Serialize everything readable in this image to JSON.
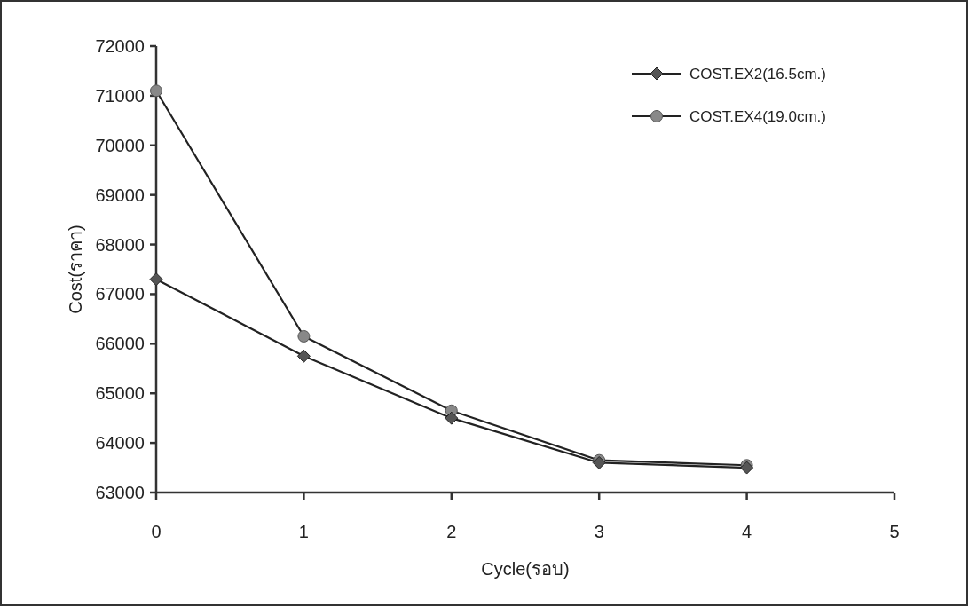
{
  "chart_data": {
    "type": "line",
    "xlabel": "Cycle(รอบ)",
    "ylabel": "Cost(ราคา)",
    "x": [
      0,
      1,
      2,
      3,
      4
    ],
    "series": [
      {
        "name": "COST.EX2(16.5cm.)",
        "color": "#222222",
        "marker": "diamond",
        "values": [
          67300,
          65750,
          64500,
          63600,
          63500
        ]
      },
      {
        "name": "COST.EX4(19.0cm.)",
        "color": "#222222",
        "marker": "circle",
        "values": [
          71100,
          66150,
          64650,
          63650,
          63550
        ]
      }
    ],
    "xlim": [
      0,
      5
    ],
    "xticks": [
      0,
      1,
      2,
      3,
      4,
      5
    ],
    "ylim": [
      63000,
      72000
    ],
    "yticks": [
      63000,
      64000,
      65000,
      66000,
      67000,
      68000,
      69000,
      70000,
      71000,
      72000
    ],
    "grid": false,
    "legend": "top right"
  }
}
